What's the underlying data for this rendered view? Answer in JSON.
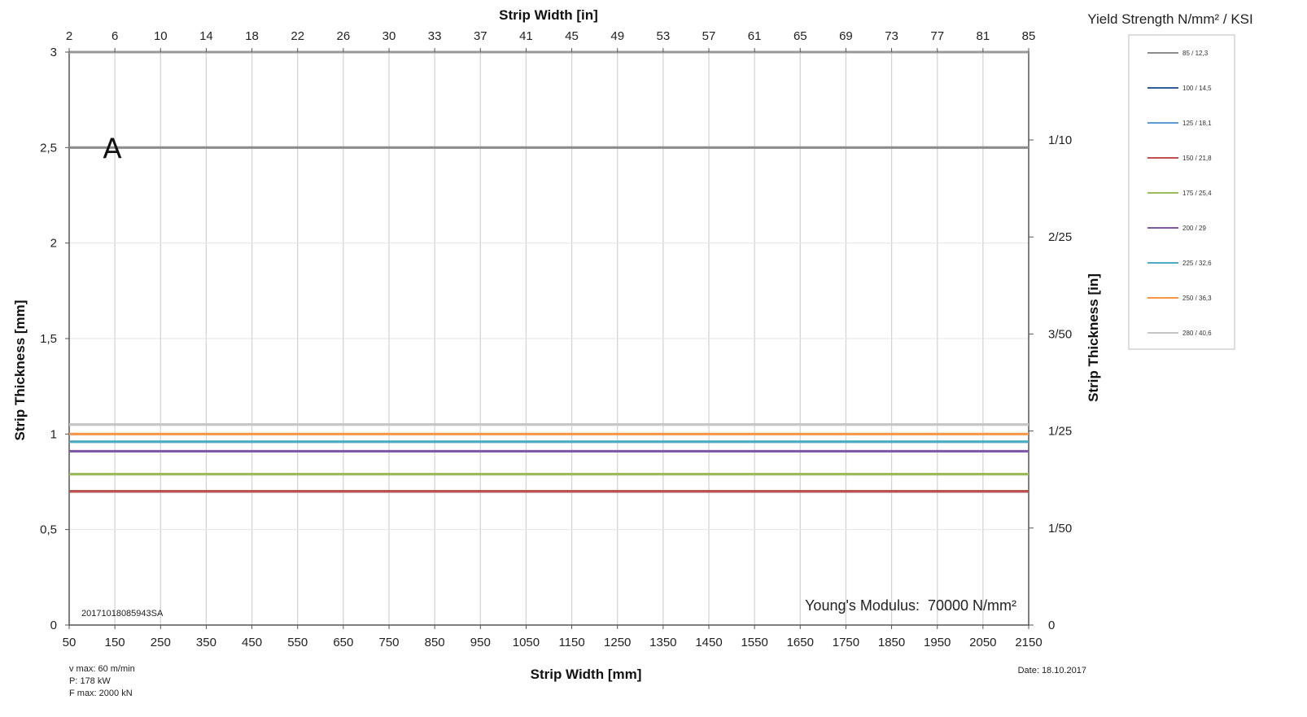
{
  "chart_data": {
    "type": "line",
    "xlabel": "Strip Width [mm]",
    "x2label": "Strip Width [in]",
    "ylabel": "Strip Thickness [mm]",
    "y2label": "Strip Thickness [in]",
    "xlim": [
      50,
      2150
    ],
    "ylim": [
      0,
      3
    ],
    "grid": true,
    "legend_position": "right",
    "legend_title": "Yield Strength N/mm² / KSI",
    "x_ticks": [
      50,
      150,
      250,
      350,
      450,
      550,
      650,
      750,
      850,
      950,
      1050,
      1150,
      1250,
      1350,
      1450,
      1550,
      1650,
      1750,
      1850,
      1950,
      2050,
      2150
    ],
    "x2_ticks": [
      "2",
      "6",
      "10",
      "14",
      "18",
      "22",
      "26",
      "30",
      "33",
      "37",
      "41",
      "45",
      "49",
      "53",
      "57",
      "61",
      "65",
      "69",
      "73",
      "77",
      "81",
      "85"
    ],
    "y_ticks": [
      {
        "value": 0,
        "label": "0"
      },
      {
        "value": 0.5,
        "label": "0,5"
      },
      {
        "value": 1,
        "label": "1"
      },
      {
        "value": 1.5,
        "label": "1,5"
      },
      {
        "value": 2,
        "label": "2"
      },
      {
        "value": 2.5,
        "label": "2,5"
      },
      {
        "value": 3,
        "label": "3"
      }
    ],
    "y2_ticks": [
      {
        "value": 0,
        "label": "0"
      },
      {
        "value": 0.508,
        "label": "1/50"
      },
      {
        "value": 1.016,
        "label": "1/25"
      },
      {
        "value": 1.524,
        "label": "3/50"
      },
      {
        "value": 2.032,
        "label": "2/25"
      },
      {
        "value": 2.54,
        "label": "1/10"
      }
    ],
    "series": [
      {
        "name": "85 / 12,3",
        "color": "#8c8c8c",
        "x": [
          50,
          2150
        ],
        "y": [
          2.5,
          2.5
        ]
      },
      {
        "name": "100 / 14,5",
        "color": "#2d5f95",
        "x": [
          50,
          2150
        ],
        "y": [
          0.7,
          0.7
        ]
      },
      {
        "name": "125 / 18,1",
        "color": "#5b9bd5",
        "x": [
          50,
          2150
        ],
        "y": [
          0.7,
          0.7
        ]
      },
      {
        "name": "150 / 21,8",
        "color": "#c0504d",
        "x": [
          50,
          2150
        ],
        "y": [
          0.7,
          0.7
        ]
      },
      {
        "name": "175 / 25,4",
        "color": "#9bbb59",
        "x": [
          50,
          2150
        ],
        "y": [
          0.79,
          0.79
        ]
      },
      {
        "name": "200 / 29",
        "color": "#7f5ba6",
        "x": [
          50,
          2150
        ],
        "y": [
          0.91,
          0.91
        ]
      },
      {
        "name": "225 / 32,6",
        "color": "#4bacc6",
        "x": [
          50,
          2150
        ],
        "y": [
          0.96,
          0.96
        ]
      },
      {
        "name": "250 / 36,3",
        "color": "#f79646",
        "x": [
          50,
          2150
        ],
        "y": [
          1.0,
          1.0
        ]
      },
      {
        "name": "280 / 40,6",
        "color": "#c6c6c6",
        "x": [
          50,
          2150
        ],
        "y": [
          1.05,
          1.05
        ]
      }
    ],
    "annotations": {
      "marker": "A",
      "marker_at": {
        "x": 180,
        "y": 2.5
      },
      "id_code": "20171018085943SA",
      "modulus_label": "Young's Modulus:",
      "modulus_value": "70000 N/mm²",
      "params": [
        "v max: 60 m/min",
        "P: 178 kW",
        "F max: 2000 kN"
      ],
      "date": "Date: 18.10.2017"
    }
  }
}
